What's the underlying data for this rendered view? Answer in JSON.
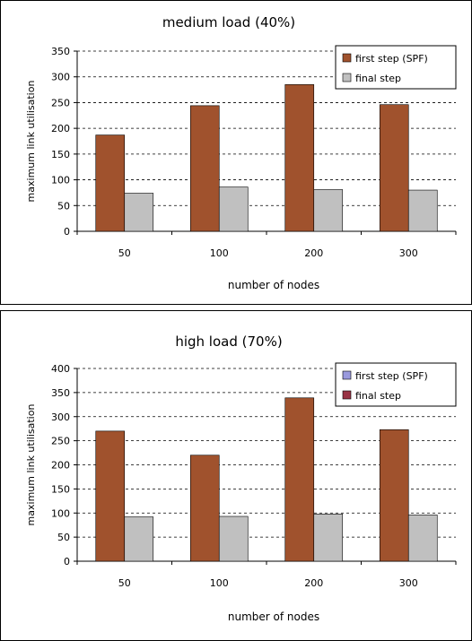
{
  "colors": {
    "first_step": "#A0522D",
    "final_step": "#C0C0C0",
    "legend_first_step_bottom": "#9999DD",
    "legend_final_step_bottom": "#993344"
  },
  "chart_data": [
    {
      "type": "bar",
      "title": "medium load (40%)",
      "xlabel": "number of nodes",
      "ylabel": "maximum link utilisation",
      "categories": [
        "50",
        "100",
        "200",
        "300"
      ],
      "ylim": [
        0,
        350
      ],
      "yticks": [
        0,
        50,
        100,
        150,
        200,
        250,
        300,
        350
      ],
      "grid": true,
      "legend_position": "top-right",
      "legend": [
        "first step (SPF)",
        "final step"
      ],
      "series": [
        {
          "name": "first step (SPF)",
          "values": [
            187,
            244,
            285,
            246
          ]
        },
        {
          "name": "final step",
          "values": [
            74,
            86,
            81,
            80
          ]
        }
      ]
    },
    {
      "type": "bar",
      "title": "high load (70%)",
      "xlabel": "number of nodes",
      "ylabel": "maximum link utilisation",
      "categories": [
        "50",
        "100",
        "200",
        "300"
      ],
      "ylim": [
        0,
        400
      ],
      "yticks": [
        0,
        50,
        100,
        150,
        200,
        250,
        300,
        350,
        400
      ],
      "grid": true,
      "legend_position": "top-right",
      "legend": [
        "first step (SPF)",
        "final step"
      ],
      "series": [
        {
          "name": "first step (SPF)",
          "values": [
            270,
            220,
            339,
            273
          ]
        },
        {
          "name": "final step",
          "values": [
            92,
            93,
            98,
            96
          ]
        }
      ]
    }
  ]
}
